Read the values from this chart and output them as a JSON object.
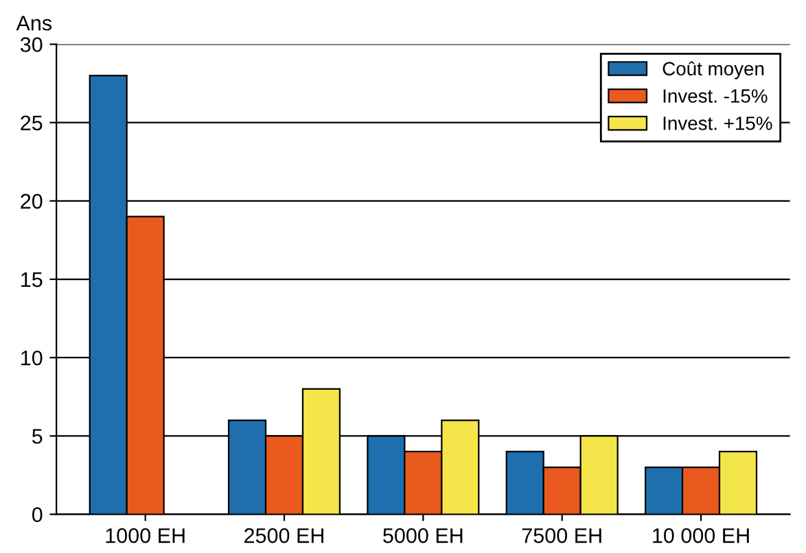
{
  "chart_data": {
    "type": "bar",
    "ylabel": "Ans",
    "categories": [
      "1000 EH",
      "2500 EH",
      "5000 EH",
      "7500 EH",
      "10 000 EH"
    ],
    "series": [
      {
        "name": "Coût moyen",
        "color": "#1f6fae",
        "values": [
          28,
          6,
          5,
          4,
          3
        ]
      },
      {
        "name": "Invest. -15%",
        "color": "#ea5a1e",
        "values": [
          19,
          5,
          4,
          3,
          3
        ]
      },
      {
        "name": "Invest. +15%",
        "color": "#f4e64a",
        "values": [
          null,
          8,
          6,
          5,
          4
        ]
      }
    ],
    "ylim": [
      0,
      30
    ],
    "yticks": [
      0,
      5,
      10,
      15,
      20,
      25,
      30
    ],
    "grid": "y",
    "legend": "top right"
  }
}
